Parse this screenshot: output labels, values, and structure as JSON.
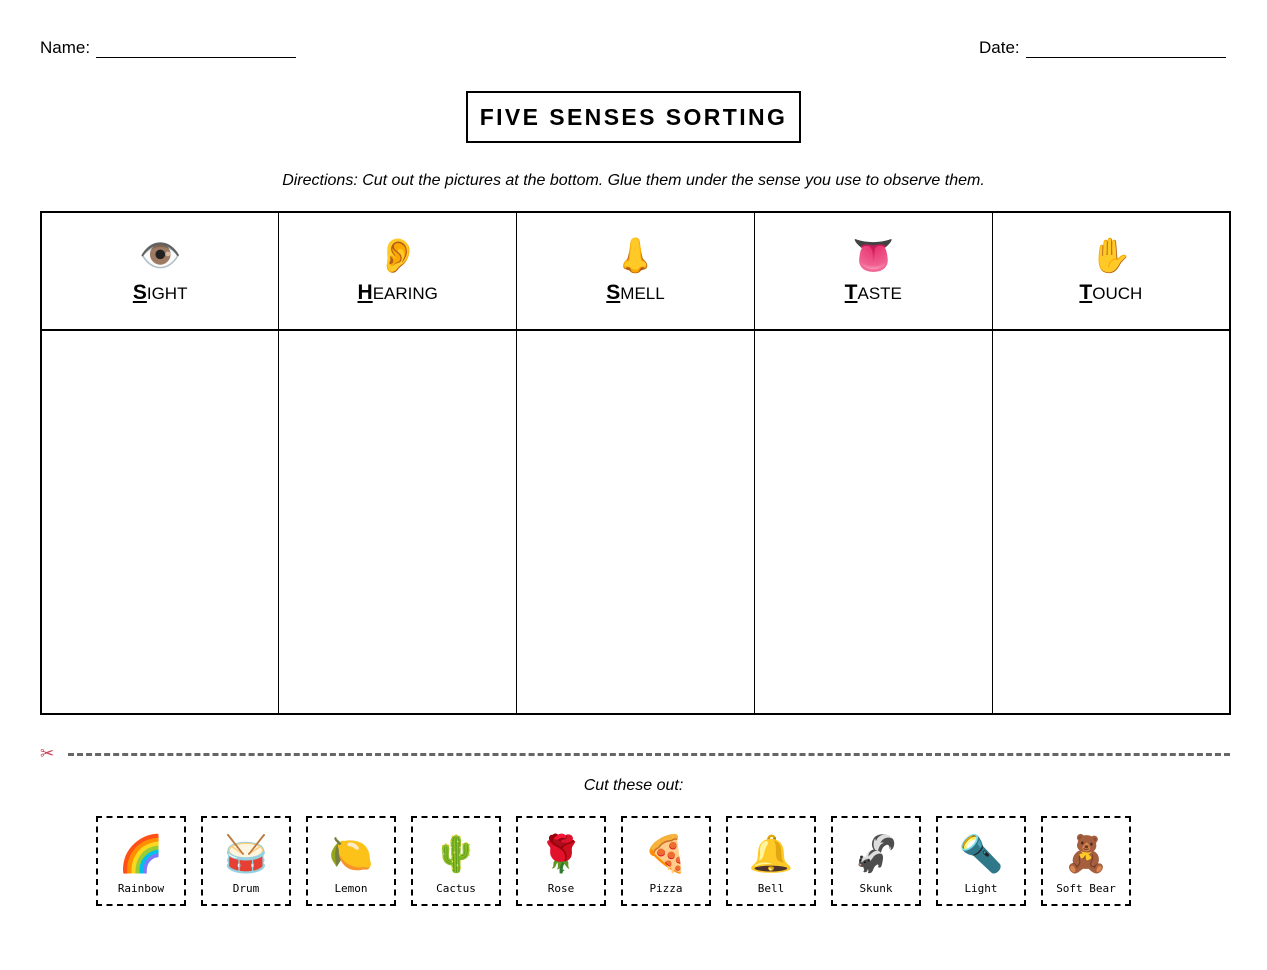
{
  "header": {
    "name_label": "Name:",
    "date_label": "Date:"
  },
  "title": "FIVE SENSES SORTING",
  "directions": "Directions: Cut out the pictures at the bottom. Glue them under the sense you use to observe them.",
  "senses": [
    {
      "icon": "👁️",
      "icon_name": "eye",
      "first": "S",
      "rest": "IGHT"
    },
    {
      "icon": "👂",
      "icon_name": "ear",
      "first": "H",
      "rest": "EARING"
    },
    {
      "icon": "👃",
      "icon_name": "nose",
      "first": "S",
      "rest": "MELL"
    },
    {
      "icon": "👅",
      "icon_name": "tongue",
      "first": "T",
      "rest": "ASTE"
    },
    {
      "icon": "✋",
      "icon_name": "hand",
      "first": "T",
      "rest": "OUCH"
    }
  ],
  "cut_section": {
    "scissors_icon": "✂",
    "label": "Cut these out:"
  },
  "cards": [
    {
      "emoji": "🌈",
      "label": "Rainbow"
    },
    {
      "emoji": "🥁",
      "label": "Drum"
    },
    {
      "emoji": "🍋",
      "label": "Lemon"
    },
    {
      "emoji": "🌵",
      "label": "Cactus"
    },
    {
      "emoji": "🌹",
      "label": "Rose"
    },
    {
      "emoji": "🍕",
      "label": "Pizza"
    },
    {
      "emoji": "🔔",
      "label": "Bell"
    },
    {
      "emoji": "🦨",
      "label": "Skunk"
    },
    {
      "emoji": "🔦",
      "label": "Light"
    },
    {
      "emoji": "🧸",
      "label": "Soft Bear"
    }
  ]
}
